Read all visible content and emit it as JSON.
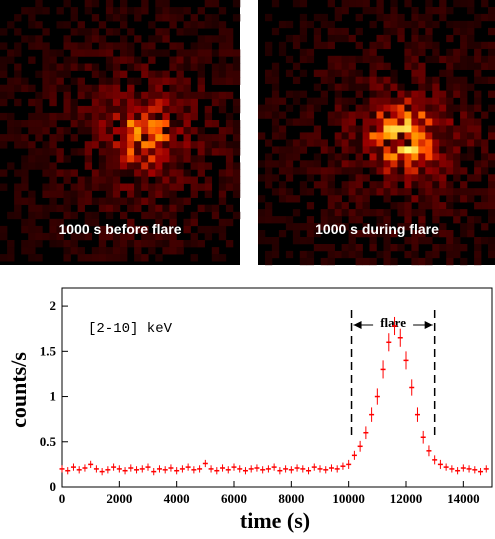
{
  "images": [
    {
      "label": "1000 s  before flare"
    },
    {
      "label": "1000 s during flare"
    }
  ],
  "chart_data": {
    "type": "scatter",
    "x": [
      0,
      200,
      400,
      600,
      800,
      1000,
      1200,
      1400,
      1600,
      1800,
      2000,
      2200,
      2400,
      2600,
      2800,
      3000,
      3200,
      3400,
      3600,
      3800,
      4000,
      4200,
      4400,
      4600,
      4800,
      5000,
      5200,
      5400,
      5600,
      5800,
      6000,
      6200,
      6400,
      6600,
      6800,
      7000,
      7200,
      7400,
      7600,
      7800,
      8000,
      8200,
      8400,
      8600,
      8800,
      9000,
      9200,
      9400,
      9600,
      9800,
      10000,
      10200,
      10400,
      10600,
      10800,
      11000,
      11200,
      11400,
      11600,
      11800,
      12000,
      12200,
      12400,
      12600,
      12800,
      13000,
      13200,
      13400,
      13600,
      13800,
      14000,
      14200,
      14400,
      14600,
      14800
    ],
    "values": [
      0.2,
      0.18,
      0.22,
      0.19,
      0.21,
      0.25,
      0.2,
      0.17,
      0.19,
      0.22,
      0.2,
      0.18,
      0.21,
      0.19,
      0.2,
      0.22,
      0.17,
      0.2,
      0.19,
      0.21,
      0.18,
      0.2,
      0.22,
      0.19,
      0.2,
      0.26,
      0.2,
      0.18,
      0.21,
      0.19,
      0.22,
      0.2,
      0.18,
      0.2,
      0.21,
      0.19,
      0.2,
      0.22,
      0.18,
      0.2,
      0.19,
      0.21,
      0.2,
      0.18,
      0.22,
      0.2,
      0.19,
      0.21,
      0.2,
      0.23,
      0.25,
      0.35,
      0.45,
      0.6,
      0.8,
      1.0,
      1.3,
      1.6,
      1.78,
      1.65,
      1.4,
      1.1,
      0.8,
      0.55,
      0.4,
      0.3,
      0.25,
      0.22,
      0.2,
      0.18,
      0.21,
      0.2,
      0.19,
      0.17,
      0.2
    ],
    "errors": [
      0.04,
      0.04,
      0.04,
      0.04,
      0.04,
      0.04,
      0.04,
      0.04,
      0.04,
      0.04,
      0.04,
      0.04,
      0.04,
      0.04,
      0.04,
      0.04,
      0.04,
      0.04,
      0.04,
      0.04,
      0.04,
      0.04,
      0.04,
      0.04,
      0.04,
      0.04,
      0.04,
      0.04,
      0.04,
      0.04,
      0.04,
      0.04,
      0.04,
      0.04,
      0.04,
      0.04,
      0.04,
      0.04,
      0.04,
      0.04,
      0.04,
      0.04,
      0.04,
      0.04,
      0.04,
      0.04,
      0.04,
      0.04,
      0.04,
      0.04,
      0.05,
      0.05,
      0.06,
      0.07,
      0.08,
      0.09,
      0.1,
      0.1,
      0.1,
      0.1,
      0.1,
      0.09,
      0.08,
      0.07,
      0.06,
      0.05,
      0.05,
      0.04,
      0.04,
      0.04,
      0.04,
      0.04,
      0.04,
      0.04,
      0.04
    ],
    "color": "#ff0000",
    "xlim": [
      0,
      15000
    ],
    "xticks": [
      0,
      2000,
      4000,
      6000,
      8000,
      10000,
      12000,
      14000
    ],
    "ylim": [
      0,
      2.2
    ],
    "yticks": [
      0,
      0.5,
      1,
      1.5,
      2
    ],
    "xlabel": "time (s)",
    "ylabel": "counts/s",
    "annotation": "[2-10] keV",
    "flare_label": "flare",
    "flare_interval": [
      10100,
      13000
    ]
  }
}
